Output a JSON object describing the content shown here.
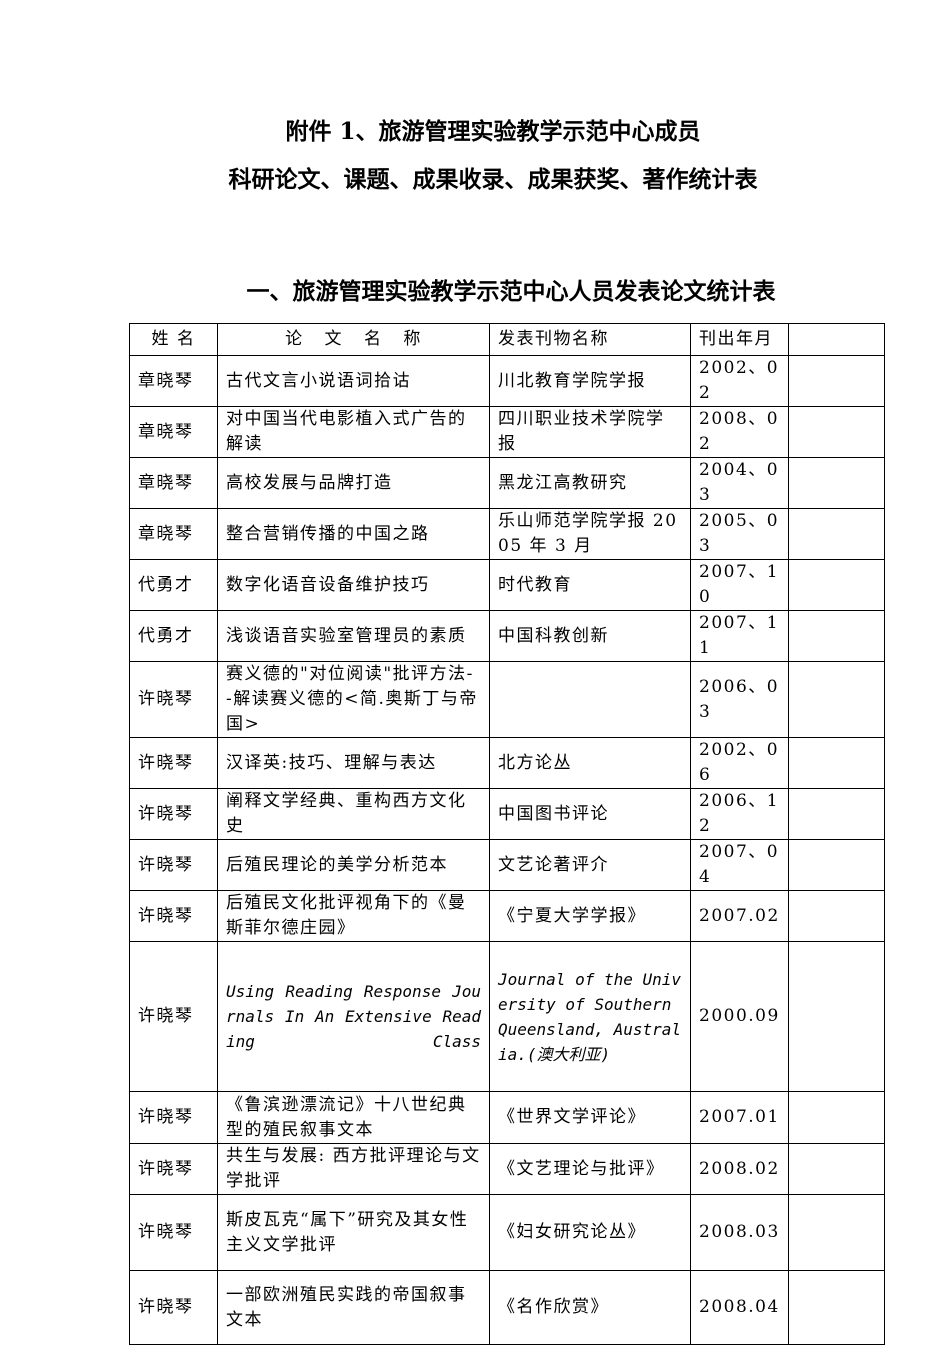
{
  "title_line1": "附件 1、旅游管理实验教学示范中心成员",
  "title_line2": "科研论文、课题、成果收录、成果获奖、著作统计表",
  "section_title": "一、旅游管理实验教学示范中心人员发表论文统计表",
  "table": {
    "headers": [
      "姓 名",
      "论 文 名 称",
      "发表刊物名称",
      "刊出年月",
      ""
    ],
    "rows": [
      {
        "name": "章晓琴",
        "paper": "古代文言小说语词拾诂",
        "journal": "川北教育学院学报",
        "date": "2002、02"
      },
      {
        "name": "章晓琴",
        "paper": "对中国当代电影植入式广告的解读",
        "journal": "四川职业技术学院学报",
        "date": "2008、02"
      },
      {
        "name": "章晓琴",
        "paper": "高校发展与品牌打造",
        "journal": "黑龙江高教研究",
        "date": "2004、03"
      },
      {
        "name": "章晓琴",
        "paper": "整合营销传播的中国之路",
        "journal": "乐山师范学院学报 2005 年 3 月",
        "date": "2005、03"
      },
      {
        "name": "代勇才",
        "paper": "数字化语音设备维护技巧",
        "journal": "时代教育",
        "date": "2007、10"
      },
      {
        "name": "代勇才",
        "paper": "浅谈语音实验室管理员的素质",
        "journal": "中国科教创新",
        "date": "2007、11"
      },
      {
        "name": "许晓琴",
        "paper": "赛义德的\"对位阅读\"批评方法--解读赛义德的<简.奥斯丁与帝国>",
        "journal": "",
        "date": "2006、03"
      },
      {
        "name": "许晓琴",
        "paper": "汉译英:技巧、理解与表达",
        "journal": "北方论丛",
        "date": "2002、06"
      },
      {
        "name": "许晓琴",
        "paper": "阐释文学经典、重构西方文化史",
        "journal": "中国图书评论",
        "date": "2006、12"
      },
      {
        "name": "许晓琴",
        "paper": "后殖民理论的美学分析范本",
        "journal": "文艺论著评介",
        "date": "2007、04"
      },
      {
        "name": "许晓琴",
        "paper": "后殖民文化批评视角下的《曼斯菲尔德庄园》",
        "journal": "《宁夏大学学报》",
        "date": "2007.02"
      },
      {
        "name": "许晓琴",
        "paper": "Using Reading Response Journals In An Extensive Reading Class",
        "journal": "Journal of the University of Southern Queensland, Australia.(澳大利亚)",
        "date": "2000.09"
      },
      {
        "name": "许晓琴",
        "paper": "《鲁滨逊漂流记》十八世纪典型的殖民叙事文本",
        "journal": "《世界文学评论》",
        "date": "2007.01"
      },
      {
        "name": "许晓琴",
        "paper": "共生与发展: 西方批评理论与文学批评",
        "journal": "《文艺理论与批评》",
        "date": "2008.02"
      },
      {
        "name": "许晓琴",
        "paper": "斯皮瓦克“属下”研究及其女性主义文学批评",
        "journal": "《妇女研究论丛》",
        "date": "2008.03"
      },
      {
        "name": "许晓琴",
        "paper": " 一部欧洲殖民实践的帝国叙事文本",
        "journal": "《名作欣赏》",
        "date": "2008.04"
      }
    ]
  }
}
